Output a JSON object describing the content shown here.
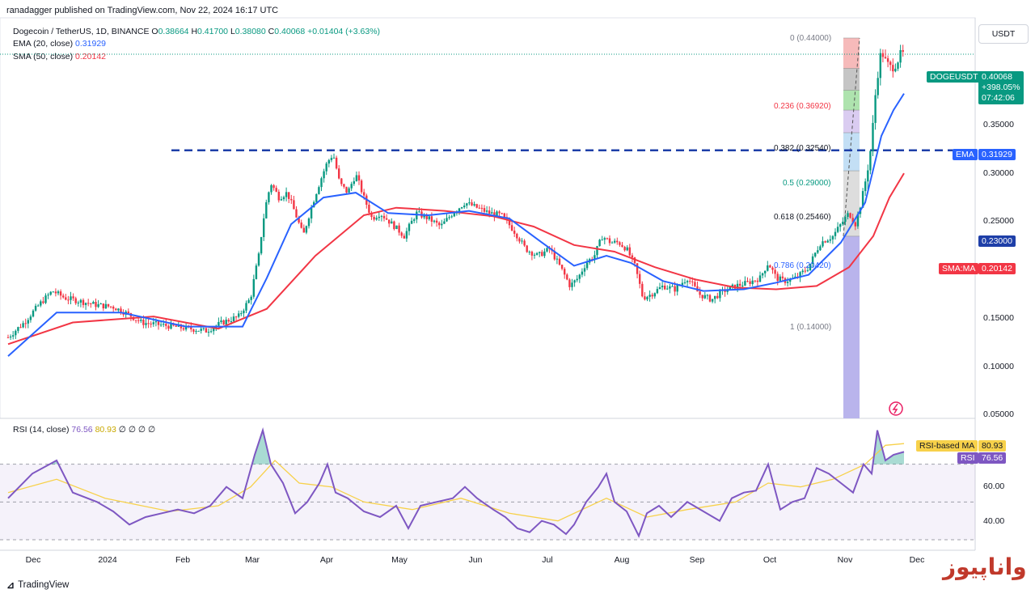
{
  "header": {
    "published_line": "ranadagger published on TradingView.com, Nov 22, 2024 16:17 UTC",
    "symbol_line": "Dogecoin / TetherUS, 1D, BINANCE",
    "ohlc": {
      "o_label": "O",
      "o": "0.38664",
      "h_label": "H",
      "h": "0.41700",
      "l_label": "L",
      "l": "0.38080",
      "c_label": "C",
      "c": "0.40068",
      "change": "+0.01404 (+3.63%)"
    },
    "ema_line": "EMA (20, close)",
    "ema_value": "0.31929",
    "sma_line": "SMA (50, close)",
    "sma_value": "0.20142",
    "rsi_line": "RSI (14, close)",
    "rsi_value": "76.56",
    "rsi_ma_value": "80.93",
    "rsi_zeros": "∅ ∅ ∅ ∅"
  },
  "currency_button": "USDT",
  "price_tags": {
    "symbol": "DOGEUSDT",
    "price": "0.40068",
    "change": "+398.05%",
    "countdown": "07:42:06",
    "ema_label": "EMA",
    "ema_value": "0.31929",
    "level_value": "0.23000",
    "sma_label": "SMA:MA",
    "sma_value": "0.20142",
    "rsi_ma_label": "RSI-based MA",
    "rsi_ma_value": "80.93",
    "rsi_label": "RSI",
    "rsi_value": "76.56"
  },
  "fib_labels": [
    {
      "text": "0 (0.44000)",
      "color": "#787b86"
    },
    {
      "text": "0.236 (0.36920)",
      "color": "#f23645"
    },
    {
      "text": "0.382 (0.32540)",
      "color": "#131722"
    },
    {
      "text": "0.5 (0.29000)",
      "color": "#089981"
    },
    {
      "text": "0.618 (0.25460)",
      "color": "#131722"
    },
    {
      "text": "0.786 (0.20420)",
      "color": "#2962ff"
    },
    {
      "text": "1 (0.14000)",
      "color": "#787b86"
    }
  ],
  "y_axis_ticks": [
    "0.35000",
    "0.30000",
    "0.25000",
    "0.15000",
    "0.10000",
    "0.05000"
  ],
  "rsi_axis_ticks": [
    "60.00",
    "40.00"
  ],
  "x_axis_ticks": [
    "Dec",
    "2024",
    "Feb",
    "Mar",
    "Apr",
    "May",
    "Jun",
    "Jul",
    "Aug",
    "Sep",
    "Oct",
    "Nov",
    "Dec"
  ],
  "footer": {
    "brand": "TradingView",
    "watermark": "واناپیوز"
  },
  "colors": {
    "up": "#089981",
    "down": "#f23645",
    "ema": "#2962ff",
    "sma": "#f23645",
    "rsi": "#7e57c2",
    "rsi_ma": "#f7d14a",
    "level": "#1e3fa8"
  },
  "chart_data": {
    "type": "candlestick",
    "symbol": "DOGEUSDT",
    "timeframe": "1D",
    "ylim": [
      0.05,
      0.44
    ],
    "level_line": 0.23,
    "fib_levels": [
      {
        "ratio": 0,
        "price": 0.44
      },
      {
        "ratio": 0.236,
        "price": 0.3692
      },
      {
        "ratio": 0.382,
        "price": 0.3254
      },
      {
        "ratio": 0.5,
        "price": 0.29
      },
      {
        "ratio": 0.618,
        "price": 0.2546
      },
      {
        "ratio": 0.786,
        "price": 0.2042
      },
      {
        "ratio": 1,
        "price": 0.14
      }
    ],
    "price_path": [
      [
        0,
        0.078
      ],
      [
        20,
        0.085
      ],
      [
        40,
        0.095
      ],
      [
        55,
        0.102
      ],
      [
        70,
        0.098
      ],
      [
        90,
        0.096
      ],
      [
        110,
        0.094
      ],
      [
        130,
        0.093
      ],
      [
        145,
        0.09
      ],
      [
        165,
        0.085
      ],
      [
        185,
        0.084
      ],
      [
        205,
        0.083
      ],
      [
        225,
        0.082
      ],
      [
        245,
        0.081
      ],
      [
        265,
        0.085
      ],
      [
        285,
        0.088
      ],
      [
        300,
        0.098
      ],
      [
        310,
        0.125
      ],
      [
        318,
        0.165
      ],
      [
        325,
        0.19
      ],
      [
        335,
        0.175
      ],
      [
        345,
        0.18
      ],
      [
        355,
        0.16
      ],
      [
        365,
        0.14
      ],
      [
        375,
        0.165
      ],
      [
        385,
        0.19
      ],
      [
        395,
        0.215
      ],
      [
        402,
        0.225
      ],
      [
        410,
        0.19
      ],
      [
        420,
        0.18
      ],
      [
        430,
        0.2
      ],
      [
        440,
        0.175
      ],
      [
        450,
        0.155
      ],
      [
        460,
        0.16
      ],
      [
        475,
        0.15
      ],
      [
        490,
        0.14
      ],
      [
        505,
        0.16
      ],
      [
        520,
        0.155
      ],
      [
        535,
        0.148
      ],
      [
        550,
        0.16
      ],
      [
        565,
        0.17
      ],
      [
        580,
        0.165
      ],
      [
        595,
        0.16
      ],
      [
        610,
        0.158
      ],
      [
        625,
        0.145
      ],
      [
        640,
        0.13
      ],
      [
        655,
        0.125
      ],
      [
        670,
        0.13
      ],
      [
        685,
        0.115
      ],
      [
        695,
        0.105
      ],
      [
        705,
        0.11
      ],
      [
        715,
        0.12
      ],
      [
        725,
        0.125
      ],
      [
        735,
        0.14
      ],
      [
        745,
        0.135
      ],
      [
        755,
        0.135
      ],
      [
        765,
        0.13
      ],
      [
        775,
        0.118
      ],
      [
        785,
        0.098
      ],
      [
        795,
        0.1
      ],
      [
        810,
        0.105
      ],
      [
        825,
        0.103
      ],
      [
        840,
        0.11
      ],
      [
        855,
        0.1
      ],
      [
        870,
        0.097
      ],
      [
        885,
        0.102
      ],
      [
        900,
        0.105
      ],
      [
        915,
        0.107
      ],
      [
        930,
        0.11
      ],
      [
        940,
        0.12
      ],
      [
        950,
        0.11
      ],
      [
        960,
        0.108
      ],
      [
        975,
        0.11
      ],
      [
        990,
        0.117
      ],
      [
        1005,
        0.135
      ],
      [
        1020,
        0.14
      ],
      [
        1030,
        0.15
      ],
      [
        1040,
        0.16
      ],
      [
        1048,
        0.15
      ],
      [
        1055,
        0.17
      ],
      [
        1062,
        0.2
      ],
      [
        1068,
        0.24
      ],
      [
        1074,
        0.34
      ],
      [
        1080,
        0.41
      ],
      [
        1086,
        0.38
      ],
      [
        1092,
        0.37
      ],
      [
        1098,
        0.38
      ],
      [
        1104,
        0.4
      ],
      [
        1108,
        0.40068
      ]
    ],
    "ema_path": [
      [
        0,
        0.07
      ],
      [
        60,
        0.09
      ],
      [
        140,
        0.09
      ],
      [
        220,
        0.083
      ],
      [
        290,
        0.083
      ],
      [
        320,
        0.11
      ],
      [
        350,
        0.15
      ],
      [
        390,
        0.175
      ],
      [
        430,
        0.18
      ],
      [
        470,
        0.16
      ],
      [
        520,
        0.158
      ],
      [
        570,
        0.162
      ],
      [
        620,
        0.155
      ],
      [
        660,
        0.135
      ],
      [
        700,
        0.118
      ],
      [
        740,
        0.125
      ],
      [
        770,
        0.12
      ],
      [
        810,
        0.108
      ],
      [
        860,
        0.102
      ],
      [
        910,
        0.103
      ],
      [
        950,
        0.107
      ],
      [
        990,
        0.112
      ],
      [
        1030,
        0.135
      ],
      [
        1060,
        0.17
      ],
      [
        1080,
        0.25
      ],
      [
        1095,
        0.29
      ],
      [
        1108,
        0.31929
      ]
    ],
    "sma_path": [
      [
        0,
        0.075
      ],
      [
        80,
        0.085
      ],
      [
        180,
        0.088
      ],
      [
        260,
        0.082
      ],
      [
        320,
        0.092
      ],
      [
        380,
        0.125
      ],
      [
        440,
        0.158
      ],
      [
        480,
        0.165
      ],
      [
        540,
        0.162
      ],
      [
        600,
        0.157
      ],
      [
        650,
        0.148
      ],
      [
        700,
        0.133
      ],
      [
        750,
        0.128
      ],
      [
        800,
        0.117
      ],
      [
        850,
        0.109
      ],
      [
        900,
        0.104
      ],
      [
        950,
        0.103
      ],
      [
        1000,
        0.105
      ],
      [
        1040,
        0.117
      ],
      [
        1070,
        0.14
      ],
      [
        1090,
        0.175
      ],
      [
        1108,
        0.20142
      ]
    ],
    "rsi": {
      "ylim": [
        30,
        90
      ],
      "levels": [
        70,
        50,
        30
      ],
      "rsi_path": [
        [
          0,
          52
        ],
        [
          30,
          65
        ],
        [
          60,
          72
        ],
        [
          80,
          55
        ],
        [
          110,
          50
        ],
        [
          130,
          45
        ],
        [
          150,
          38
        ],
        [
          170,
          42
        ],
        [
          190,
          44
        ],
        [
          210,
          46
        ],
        [
          230,
          44
        ],
        [
          250,
          48
        ],
        [
          270,
          58
        ],
        [
          290,
          52
        ],
        [
          305,
          75
        ],
        [
          315,
          88
        ],
        [
          325,
          70
        ],
        [
          340,
          60
        ],
        [
          355,
          44
        ],
        [
          370,
          50
        ],
        [
          385,
          60
        ],
        [
          395,
          70
        ],
        [
          405,
          55
        ],
        [
          420,
          52
        ],
        [
          440,
          45
        ],
        [
          460,
          42
        ],
        [
          480,
          48
        ],
        [
          495,
          36
        ],
        [
          510,
          48
        ],
        [
          530,
          50
        ],
        [
          550,
          52
        ],
        [
          565,
          58
        ],
        [
          580,
          52
        ],
        [
          600,
          46
        ],
        [
          615,
          42
        ],
        [
          630,
          36
        ],
        [
          645,
          34
        ],
        [
          660,
          40
        ],
        [
          675,
          38
        ],
        [
          690,
          33
        ],
        [
          700,
          38
        ],
        [
          715,
          50
        ],
        [
          730,
          58
        ],
        [
          740,
          65
        ],
        [
          750,
          50
        ],
        [
          765,
          45
        ],
        [
          780,
          32
        ],
        [
          790,
          44
        ],
        [
          805,
          48
        ],
        [
          820,
          42
        ],
        [
          840,
          50
        ],
        [
          860,
          45
        ],
        [
          880,
          40
        ],
        [
          895,
          52
        ],
        [
          910,
          55
        ],
        [
          925,
          56
        ],
        [
          940,
          70
        ],
        [
          955,
          46
        ],
        [
          970,
          50
        ],
        [
          985,
          52
        ],
        [
          1000,
          68
        ],
        [
          1015,
          65
        ],
        [
          1030,
          60
        ],
        [
          1045,
          55
        ],
        [
          1058,
          70
        ],
        [
          1068,
          65
        ],
        [
          1075,
          88
        ],
        [
          1085,
          72
        ],
        [
          1095,
          75
        ],
        [
          1108,
          76.56
        ]
      ],
      "ma_path": [
        [
          0,
          55
        ],
        [
          60,
          62
        ],
        [
          120,
          52
        ],
        [
          200,
          45
        ],
        [
          260,
          48
        ],
        [
          300,
          58
        ],
        [
          330,
          72
        ],
        [
          360,
          60
        ],
        [
          400,
          58
        ],
        [
          440,
          50
        ],
        [
          500,
          46
        ],
        [
          560,
          52
        ],
        [
          620,
          44
        ],
        [
          680,
          40
        ],
        [
          740,
          52
        ],
        [
          790,
          42
        ],
        [
          840,
          46
        ],
        [
          900,
          50
        ],
        [
          940,
          60
        ],
        [
          980,
          58
        ],
        [
          1020,
          62
        ],
        [
          1060,
          70
        ],
        [
          1085,
          80
        ],
        [
          1108,
          80.93
        ]
      ]
    }
  }
}
